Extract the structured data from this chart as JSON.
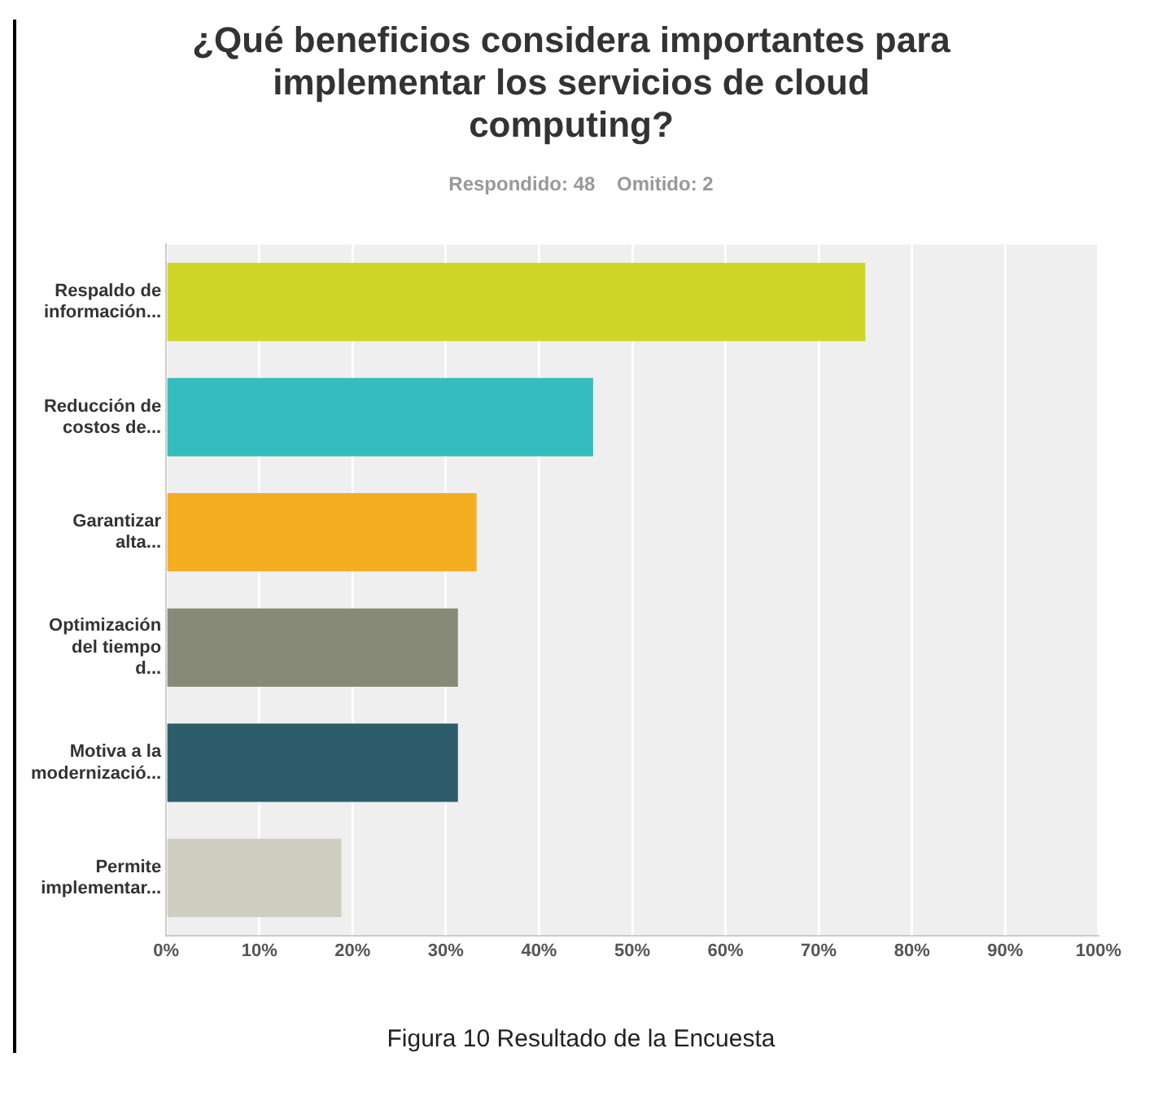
{
  "chart_data": {
    "type": "bar",
    "orientation": "horizontal",
    "title": "¿Qué beneficios considera importantes para implementar los servicios de cloud computing?",
    "subtitle": "Respondido: 48    Omitido: 2",
    "categories": [
      "Respaldo de información...",
      "Reducción de costos de...",
      "Garantizar alta...",
      "Optimización del tiempo d...",
      "Motiva a la modernizació...",
      "Permite implementar..."
    ],
    "values": [
      75,
      45.8,
      33.3,
      31.3,
      31.3,
      18.8
    ],
    "colors": [
      "#cfd628",
      "#33bdbf",
      "#f6ae20",
      "#888a78",
      "#2d5d6a",
      "#cfcec0"
    ],
    "xlim": [
      0,
      100
    ],
    "xticks": [
      {
        "value": 0,
        "label": "0%"
      },
      {
        "value": 10,
        "label": "10%"
      },
      {
        "value": 20,
        "label": "20%"
      },
      {
        "value": 30,
        "label": "30%"
      },
      {
        "value": 40,
        "label": "40%"
      },
      {
        "value": 50,
        "label": "50%"
      },
      {
        "value": 60,
        "label": "60%"
      },
      {
        "value": 70,
        "label": "70%"
      },
      {
        "value": 80,
        "label": "80%"
      },
      {
        "value": 90,
        "label": "90%"
      },
      {
        "value": 100,
        "label": "100%"
      }
    ],
    "grid": "x",
    "legend": false,
    "annotations": [
      "Figura 10 Resultado de la Encuesta"
    ]
  }
}
